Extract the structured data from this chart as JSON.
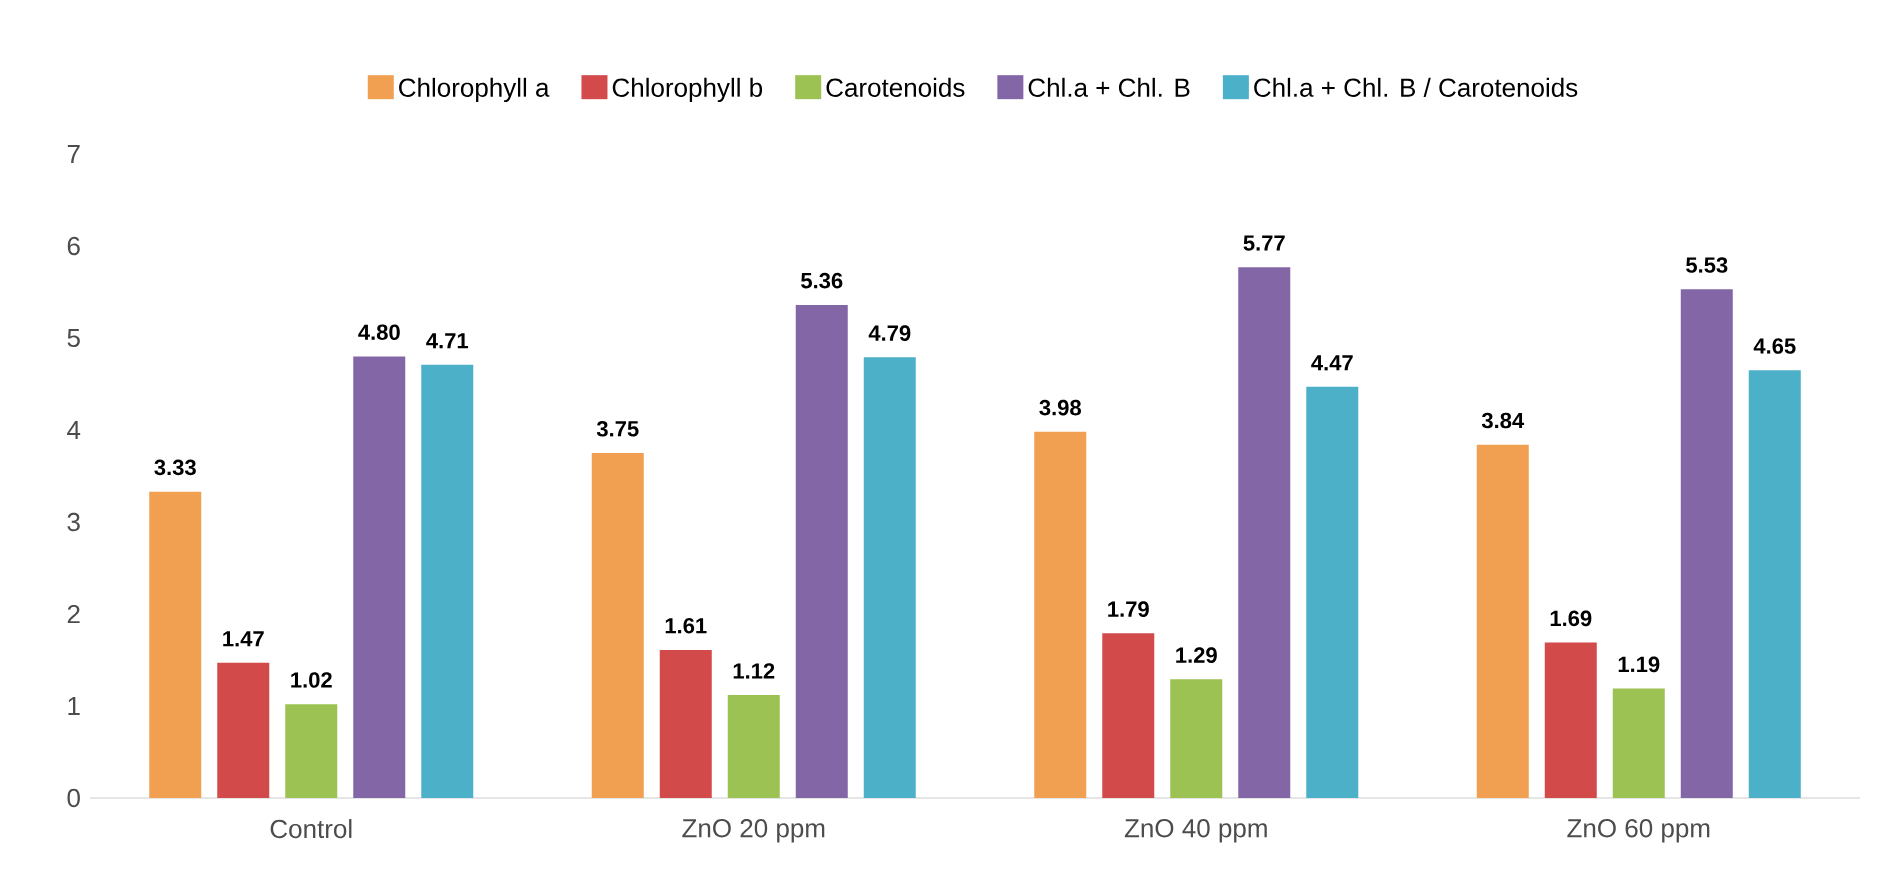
{
  "chart_data": {
    "type": "bar",
    "categories": [
      "Control",
      "ZnO 20 ppm",
      "ZnO 40 ppm",
      "ZnO 60 ppm"
    ],
    "series": [
      {
        "name": "Chlorophyll a",
        "color": "#f0a050",
        "values": [
          3.33,
          3.75,
          3.98,
          3.84
        ],
        "value_labels": [
          "3.33",
          "3.75",
          "3.98",
          "3.84"
        ]
      },
      {
        "name": "Chlorophyll b",
        "color": "#d24a4a",
        "values": [
          1.47,
          1.61,
          1.79,
          1.69
        ],
        "value_labels": [
          "1.47",
          "1.61",
          "1.79",
          "1.69"
        ]
      },
      {
        "name": "Carotenoids",
        "color": "#9bc252",
        "values": [
          1.02,
          1.12,
          1.29,
          1.19
        ],
        "value_labels": [
          "1.02",
          "1.12",
          "1.29",
          "1.19"
        ]
      },
      {
        "name": "Chl.a + Chl. B",
        "color": "#8366a6",
        "values": [
          4.8,
          5.36,
          5.77,
          5.53
        ],
        "value_labels": [
          "4.80",
          "5.36",
          "5.77",
          "5.53"
        ]
      },
      {
        "name": "Chl.a + Chl. B / Carotenoids",
        "color": "#4bb0c8",
        "values": [
          4.71,
          4.79,
          4.47,
          4.65
        ],
        "value_labels": [
          "4.71",
          "4.79",
          "4.47",
          "4.65"
        ]
      }
    ],
    "ylim": [
      0,
      7
    ],
    "yticks": [
      0,
      1,
      2,
      3,
      4,
      5,
      6,
      7
    ],
    "grid": false,
    "legend": "top"
  }
}
